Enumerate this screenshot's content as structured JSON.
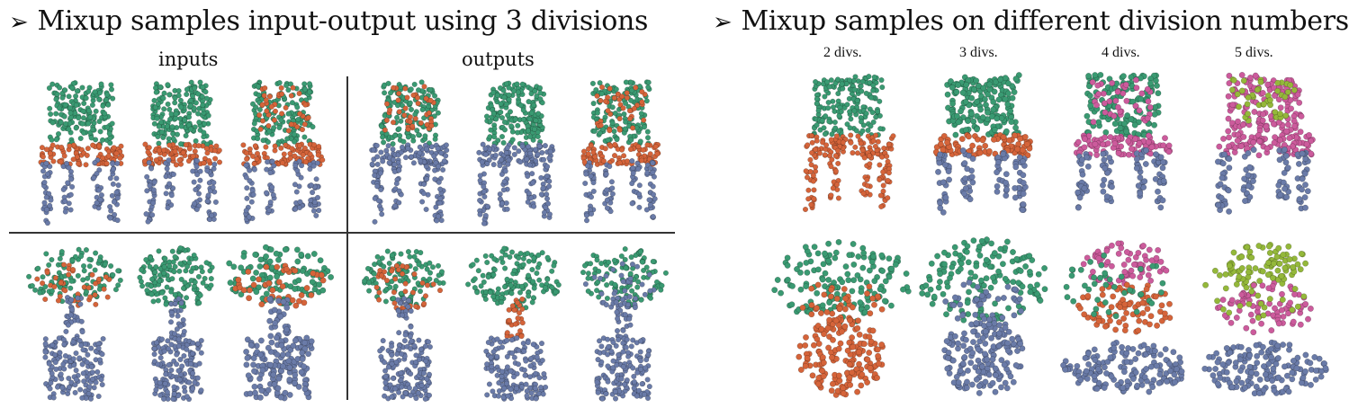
{
  "left_panel": {
    "title": "Mixup samples input-output using 3 divisions",
    "arrow": "➢",
    "labels": {
      "inputs": "inputs",
      "outputs": "outputs"
    }
  },
  "right_panel": {
    "title": "Mixup samples on different division numbers",
    "arrow": "➢",
    "division_labels": [
      "2 divs.",
      "3 divs.",
      "4 divs.",
      "5 divs."
    ]
  },
  "colors": {
    "green": "#3a9a72",
    "orange": "#d5643a",
    "blue": "#6a7ba8",
    "pink": "#cc5b9c",
    "lime": "#94b83a"
  },
  "icons": [
    "chair-point-cloud",
    "plant-point-cloud"
  ]
}
